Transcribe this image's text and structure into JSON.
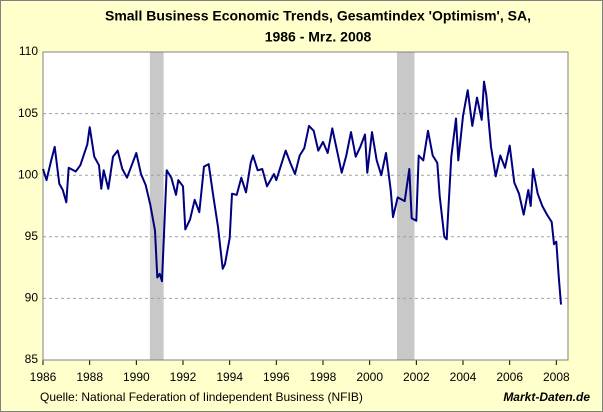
{
  "chart_data": {
    "type": "line",
    "title": [
      "Small Business Economic Trends, Gesamtindex 'Optimism', SA,",
      "1986 - Mrz. 2008"
    ],
    "source": "Quelle: National Federation of Iindependent Business (NFIB)",
    "watermark": "Markt-Daten.de",
    "xlim": [
      1986,
      2008.5
    ],
    "ylim": [
      85,
      110
    ],
    "xticks": [
      1986,
      1988,
      1990,
      1992,
      1994,
      1996,
      1998,
      2000,
      2002,
      2004,
      2006,
      2008
    ],
    "yticks": [
      85,
      90,
      95,
      100,
      105,
      110
    ],
    "grid": true,
    "recessions": [
      [
        1990.58,
        1991.17
      ],
      [
        2001.17,
        2001.92
      ]
    ],
    "recession_color": "#c8c8c8",
    "series": [
      {
        "color": "#000080",
        "x": [
          1986.0,
          1986.15,
          1986.35,
          1986.5,
          1986.7,
          1986.85,
          1987.0,
          1987.1,
          1987.4,
          1987.6,
          1987.9,
          1988.0,
          1988.2,
          1988.4,
          1988.5,
          1988.6,
          1988.8,
          1989.0,
          1989.2,
          1989.4,
          1989.6,
          1989.8,
          1990.0,
          1990.2,
          1990.4,
          1990.6,
          1990.8,
          1990.9,
          1991.0,
          1991.1,
          1991.3,
          1991.5,
          1991.7,
          1991.8,
          1992.0,
          1992.1,
          1992.3,
          1992.5,
          1992.7,
          1992.9,
          1993.1,
          1993.3,
          1993.5,
          1993.7,
          1993.8,
          1994.0,
          1994.1,
          1994.3,
          1994.5,
          1994.7,
          1994.9,
          1995.0,
          1995.2,
          1995.4,
          1995.6,
          1995.9,
          1996.0,
          1996.2,
          1996.4,
          1996.6,
          1996.8,
          1997.0,
          1997.2,
          1997.4,
          1997.6,
          1997.8,
          1998.0,
          1998.2,
          1998.4,
          1998.6,
          1998.8,
          1999.0,
          1999.2,
          1999.4,
          1999.6,
          1999.8,
          1999.9,
          2000.1,
          2000.3,
          2000.5,
          2000.7,
          2000.9,
          2001.0,
          2001.2,
          2001.5,
          2001.7,
          2001.8,
          2002.0,
          2002.1,
          2002.3,
          2002.5,
          2002.7,
          2002.9,
          2003.0,
          2003.2,
          2003.3,
          2003.5,
          2003.7,
          2003.8,
          2004.0,
          2004.2,
          2004.4,
          2004.6,
          2004.8,
          2004.9,
          2005.0,
          2005.2,
          2005.4,
          2005.6,
          2005.8,
          2006.0,
          2006.2,
          2006.4,
          2006.6,
          2006.8,
          2006.9,
          2007.0,
          2007.2,
          2007.4,
          2007.6,
          2007.8,
          2007.9,
          2008.0,
          2008.1,
          2008.2
        ],
        "values": [
          100.5,
          99.6,
          101.2,
          102.3,
          99.3,
          98.8,
          97.8,
          100.6,
          100.3,
          100.8,
          102.5,
          103.9,
          101.5,
          100.8,
          98.9,
          100.4,
          98.9,
          101.5,
          102,
          100.5,
          99.8,
          100.8,
          101.8,
          100.1,
          99.2,
          97.6,
          95.5,
          91.7,
          92,
          91.4,
          100.4,
          99.8,
          98.4,
          99.6,
          99.1,
          95.6,
          96.4,
          98,
          97,
          100.7,
          100.9,
          98.3,
          95.8,
          92.4,
          92.8,
          94.9,
          98.5,
          98.4,
          99.8,
          98.6,
          101,
          101.6,
          100.4,
          100.5,
          99.1,
          100.1,
          99.6,
          100.8,
          102,
          101,
          100.1,
          101.6,
          102.2,
          104,
          103.6,
          102,
          102.7,
          101.8,
          103.8,
          102,
          100.2,
          101.6,
          103.5,
          101.5,
          102.3,
          103.3,
          100.2,
          103.5,
          101.2,
          100,
          101.8,
          98.8,
          96.6,
          98.2,
          97.9,
          100.5,
          96.5,
          96.3,
          101.6,
          101.2,
          103.6,
          101.6,
          101,
          98.3,
          95,
          94.8,
          101.5,
          104.6,
          101.2,
          104.8,
          106.9,
          104,
          106.3,
          104.5,
          107.6,
          106.5,
          102.3,
          99.9,
          101.6,
          100.6,
          102.4,
          99.4,
          98.5,
          96.8,
          98.8,
          97.5,
          100.5,
          98.5,
          97.5,
          96.8,
          96.2,
          94.4,
          94.6,
          91.8,
          89.5
        ]
      }
    ]
  }
}
